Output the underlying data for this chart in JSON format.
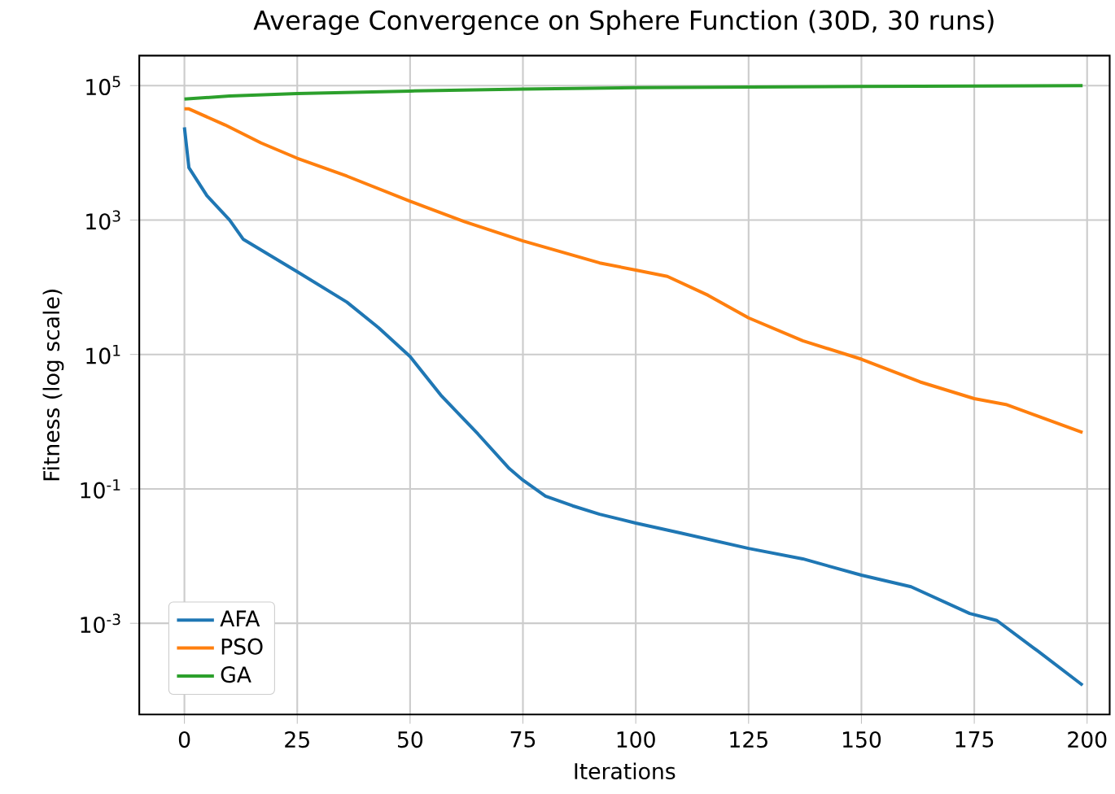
{
  "chart_data": {
    "type": "line",
    "title": "Average Convergence on Sphere Function (30D, 30 runs)",
    "xlabel": "Iterations",
    "ylabel": "Fitness (log scale)",
    "log": "y",
    "grid": true,
    "legend": "bottom left",
    "line_style": "solid",
    "marker": "none",
    "xlim": [
      -10,
      205
    ],
    "ylim": [
      4.4e-05,
      279000
    ],
    "xticks": [
      0,
      25,
      50,
      75,
      100,
      125,
      150,
      175,
      200
    ],
    "yticks": [
      {
        "value": 0.001,
        "label": "10$^{-3}$"
      },
      {
        "value": 0.1,
        "label": "10$^{-1}$"
      },
      {
        "value": 10,
        "label": "10$^{1}$"
      },
      {
        "value": 1000,
        "label": "10$^{3}$"
      },
      {
        "value": 100000,
        "label": "10$^{5}$"
      }
    ],
    "series": [
      {
        "name": "AFA",
        "color": "#1f77b4",
        "x": [
          0,
          1,
          5,
          10,
          13,
          25,
          36,
          43,
          50,
          57,
          65,
          72,
          75,
          80,
          86,
          92,
          100,
          110,
          125,
          137,
          150,
          161,
          174,
          180,
          189,
          199
        ],
        "values": [
          24000,
          6000,
          2300,
          1000,
          520,
          170,
          60,
          25,
          9.3,
          2.4,
          0.66,
          0.2,
          0.135,
          0.078,
          0.056,
          0.042,
          0.031,
          0.022,
          0.013,
          0.0091,
          0.0052,
          0.0035,
          0.0014,
          0.0011,
          0.00039,
          0.00012
        ]
      },
      {
        "name": "PSO",
        "color": "#ff7f0e",
        "x": [
          0,
          1,
          9,
          17,
          25,
          36,
          50,
          62,
          75,
          92,
          100,
          107,
          116,
          125,
          137,
          150,
          163,
          175,
          182,
          190,
          199
        ],
        "values": [
          45000,
          45000,
          26000,
          14000,
          8300,
          4500,
          1900,
          950,
          490,
          230,
          180,
          145,
          76,
          35,
          16,
          8.5,
          3.9,
          2.2,
          1.8,
          1.15,
          0.69
        ]
      },
      {
        "name": "GA",
        "color": "#2ca02c",
        "x": [
          0,
          10,
          25,
          50,
          75,
          100,
          150,
          199
        ],
        "values": [
          63000,
          70000,
          76000,
          83000,
          89000,
          93000,
          97000,
          100000
        ]
      }
    ]
  }
}
